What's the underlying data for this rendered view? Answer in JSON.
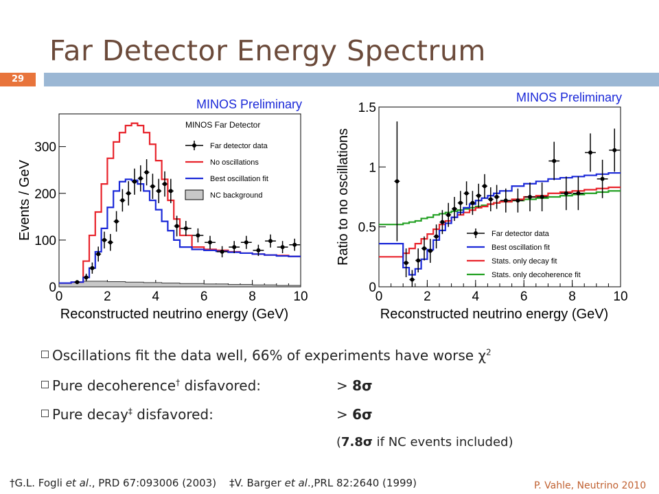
{
  "slide": {
    "title": "Far Detector Energy Spectrum",
    "page_number": "29",
    "credit": "P. Vahle, Neutrino 2010"
  },
  "bullets": [
    {
      "prefix": "Oscillations fit the data well, 66% of experiments have worse χ",
      "sup": "2",
      "value_gt": "",
      "value": ""
    },
    {
      "prefix": "Pure decoherence",
      "sup": "†",
      "suffix": " disfavored:",
      "value_gt": "> ",
      "value": "8σ"
    },
    {
      "prefix": "Pure decay",
      "sup": "‡",
      "suffix": " disfavored:",
      "value_gt": "> ",
      "value": "6σ"
    }
  ],
  "note": {
    "open": "(",
    "value": "7.8σ",
    "rest": " if NC events included)"
  },
  "footnote": {
    "ref1_pre": "†G.L. Fogli ",
    "ref1_etal": "et al",
    "ref1_post": "., PRD 67:093006 (2003)",
    "ref2_pre": "‡V. Barger ",
    "ref2_etal": "et al",
    "ref2_post": ".,PRL 82:2640 (1999)"
  },
  "colors": {
    "title": "#6b4a3a",
    "header_bar": "#9bb7d4",
    "page_badge": "#e8743b",
    "data": "#000000",
    "no_osc": "#e8222a",
    "best_fit": "#1a28d8",
    "decay": "#e8222a",
    "decoherence": "#22a022",
    "nc": "#c8c8c8",
    "preliminary": "#1a28d8"
  },
  "chart_data": [
    {
      "type": "line",
      "banner": "MINOS Preliminary",
      "xlabel": "Reconstructed neutrino energy (GeV)",
      "ylabel": "Events / GeV",
      "xlim": [
        0,
        10
      ],
      "ylim": [
        0,
        370
      ],
      "xticks": [
        0,
        2,
        4,
        6,
        8,
        10
      ],
      "yticks": [
        0,
        100,
        200,
        300
      ],
      "legend_title": "MINOS Far Detector",
      "legend_position": "top-right",
      "legend": [
        "Far detector data",
        "No oscillations",
        "Best oscillation fit",
        "NC background"
      ],
      "bin_edges": [
        0,
        0.5,
        1,
        1.25,
        1.5,
        1.75,
        2,
        2.25,
        2.5,
        2.75,
        3,
        3.25,
        3.5,
        3.75,
        4,
        4.25,
        4.5,
        4.75,
        5,
        5.5,
        6,
        6.5,
        7,
        7.5,
        8,
        8.5,
        9,
        9.5,
        10
      ],
      "no_osc": [
        8,
        10,
        55,
        110,
        160,
        220,
        275,
        310,
        330,
        345,
        350,
        345,
        330,
        305,
        270,
        230,
        185,
        145,
        110,
        85,
        80,
        78,
        75,
        72,
        70,
        68,
        67,
        65
      ],
      "best_fit": [
        8,
        10,
        20,
        40,
        75,
        125,
        170,
        205,
        225,
        230,
        228,
        220,
        205,
        185,
        165,
        140,
        120,
        100,
        85,
        80,
        78,
        76,
        74,
        72,
        70,
        68,
        66,
        65
      ],
      "nc_background": [
        8,
        10,
        12,
        12,
        12,
        12,
        11,
        11,
        11,
        10,
        10,
        10,
        9,
        9,
        9,
        8,
        8,
        8,
        7,
        7,
        6,
        6,
        5,
        5,
        4,
        4,
        3,
        3
      ],
      "data_points": [
        {
          "x": 0.75,
          "y": 10,
          "err": 4
        },
        {
          "x": 1.125,
          "y": 20,
          "err": 8
        },
        {
          "x": 1.375,
          "y": 40,
          "err": 12
        },
        {
          "x": 1.625,
          "y": 70,
          "err": 16
        },
        {
          "x": 1.875,
          "y": 100,
          "err": 18
        },
        {
          "x": 2.125,
          "y": 95,
          "err": 18
        },
        {
          "x": 2.375,
          "y": 140,
          "err": 22
        },
        {
          "x": 2.625,
          "y": 185,
          "err": 24
        },
        {
          "x": 2.875,
          "y": 200,
          "err": 26
        },
        {
          "x": 3.125,
          "y": 225,
          "err": 28
        },
        {
          "x": 3.375,
          "y": 232,
          "err": 28
        },
        {
          "x": 3.625,
          "y": 245,
          "err": 28
        },
        {
          "x": 3.875,
          "y": 215,
          "err": 27
        },
        {
          "x": 4.125,
          "y": 205,
          "err": 26
        },
        {
          "x": 4.375,
          "y": 220,
          "err": 27
        },
        {
          "x": 4.625,
          "y": 205,
          "err": 26
        },
        {
          "x": 4.875,
          "y": 130,
          "err": 22
        },
        {
          "x": 5.25,
          "y": 125,
          "err": 16
        },
        {
          "x": 5.75,
          "y": 110,
          "err": 15
        },
        {
          "x": 6.25,
          "y": 95,
          "err": 14
        },
        {
          "x": 6.75,
          "y": 75,
          "err": 12
        },
        {
          "x": 7.25,
          "y": 85,
          "err": 13
        },
        {
          "x": 7.75,
          "y": 95,
          "err": 14
        },
        {
          "x": 8.25,
          "y": 78,
          "err": 12
        },
        {
          "x": 8.75,
          "y": 98,
          "err": 14
        },
        {
          "x": 9.25,
          "y": 85,
          "err": 13
        },
        {
          "x": 9.75,
          "y": 90,
          "err": 13
        }
      ]
    },
    {
      "type": "line",
      "banner": "MINOS Preliminary",
      "xlabel": "Reconstructed neutrino energy (GeV)",
      "ylabel": "Ratio to no oscillations",
      "xlim": [
        0,
        10
      ],
      "ylim": [
        0,
        1.5
      ],
      "xticks": [
        0,
        2,
        4,
        6,
        8,
        10
      ],
      "yticks": [
        0,
        0.5,
        1,
        1.5
      ],
      "ytick_labels": [
        "0",
        "0.5",
        "1",
        "1.5"
      ],
      "legend_position": "bottom-right",
      "legend": [
        "Far detector data",
        "Best oscillation fit",
        "Stats. only decay fit",
        "Stats. only decoherence fit"
      ],
      "bin_edges": [
        0,
        0.5,
        1,
        1.25,
        1.5,
        1.75,
        2,
        2.25,
        2.5,
        2.75,
        3,
        3.25,
        3.5,
        3.75,
        4,
        4.25,
        4.5,
        4.75,
        5,
        5.5,
        6,
        6.5,
        7,
        7.5,
        8,
        8.5,
        9,
        9.5,
        10
      ],
      "best_fit": [
        0.36,
        0.36,
        0.16,
        0.1,
        0.15,
        0.23,
        0.31,
        0.39,
        0.47,
        0.53,
        0.58,
        0.62,
        0.66,
        0.69,
        0.72,
        0.74,
        0.76,
        0.78,
        0.8,
        0.84,
        0.86,
        0.88,
        0.9,
        0.91,
        0.92,
        0.93,
        0.94,
        0.95
      ],
      "decay": [
        0.25,
        0.25,
        0.28,
        0.32,
        0.36,
        0.4,
        0.44,
        0.48,
        0.52,
        0.55,
        0.58,
        0.6,
        0.62,
        0.64,
        0.66,
        0.67,
        0.69,
        0.7,
        0.71,
        0.73,
        0.75,
        0.76,
        0.78,
        0.79,
        0.8,
        0.81,
        0.82,
        0.83
      ],
      "decoherence": [
        0.52,
        0.52,
        0.53,
        0.54,
        0.55,
        0.57,
        0.58,
        0.6,
        0.61,
        0.62,
        0.63,
        0.64,
        0.65,
        0.66,
        0.67,
        0.68,
        0.69,
        0.7,
        0.71,
        0.72,
        0.73,
        0.74,
        0.75,
        0.76,
        0.77,
        0.78,
        0.79,
        0.8
      ],
      "data_points": [
        {
          "x": 0.75,
          "y": 0.88,
          "err": 0.5
        },
        {
          "x": 1.125,
          "y": 0.2,
          "err": 0.12
        },
        {
          "x": 1.375,
          "y": 0.06,
          "err": 0.08
        },
        {
          "x": 1.625,
          "y": 0.22,
          "err": 0.1
        },
        {
          "x": 1.875,
          "y": 0.32,
          "err": 0.1
        },
        {
          "x": 2.125,
          "y": 0.3,
          "err": 0.1
        },
        {
          "x": 2.375,
          "y": 0.42,
          "err": 0.1
        },
        {
          "x": 2.625,
          "y": 0.54,
          "err": 0.1
        },
        {
          "x": 2.875,
          "y": 0.6,
          "err": 0.1
        },
        {
          "x": 3.125,
          "y": 0.65,
          "err": 0.1
        },
        {
          "x": 3.375,
          "y": 0.7,
          "err": 0.1
        },
        {
          "x": 3.625,
          "y": 0.78,
          "err": 0.1
        },
        {
          "x": 3.875,
          "y": 0.7,
          "err": 0.1
        },
        {
          "x": 4.125,
          "y": 0.76,
          "err": 0.1
        },
        {
          "x": 4.375,
          "y": 0.84,
          "err": 0.1
        },
        {
          "x": 4.625,
          "y": 0.73,
          "err": 0.1
        },
        {
          "x": 4.875,
          "y": 0.75,
          "err": 0.1
        },
        {
          "x": 5.25,
          "y": 0.72,
          "err": 0.1
        },
        {
          "x": 5.75,
          "y": 0.72,
          "err": 0.1
        },
        {
          "x": 6.25,
          "y": 0.75,
          "err": 0.12
        },
        {
          "x": 6.75,
          "y": 0.75,
          "err": 0.12
        },
        {
          "x": 7.25,
          "y": 1.05,
          "err": 0.16
        },
        {
          "x": 7.75,
          "y": 0.78,
          "err": 0.14
        },
        {
          "x": 8.25,
          "y": 0.78,
          "err": 0.14
        },
        {
          "x": 8.75,
          "y": 1.12,
          "err": 0.16
        },
        {
          "x": 9.25,
          "y": 0.9,
          "err": 0.16
        },
        {
          "x": 9.75,
          "y": 1.14,
          "err": 0.18
        }
      ]
    }
  ]
}
